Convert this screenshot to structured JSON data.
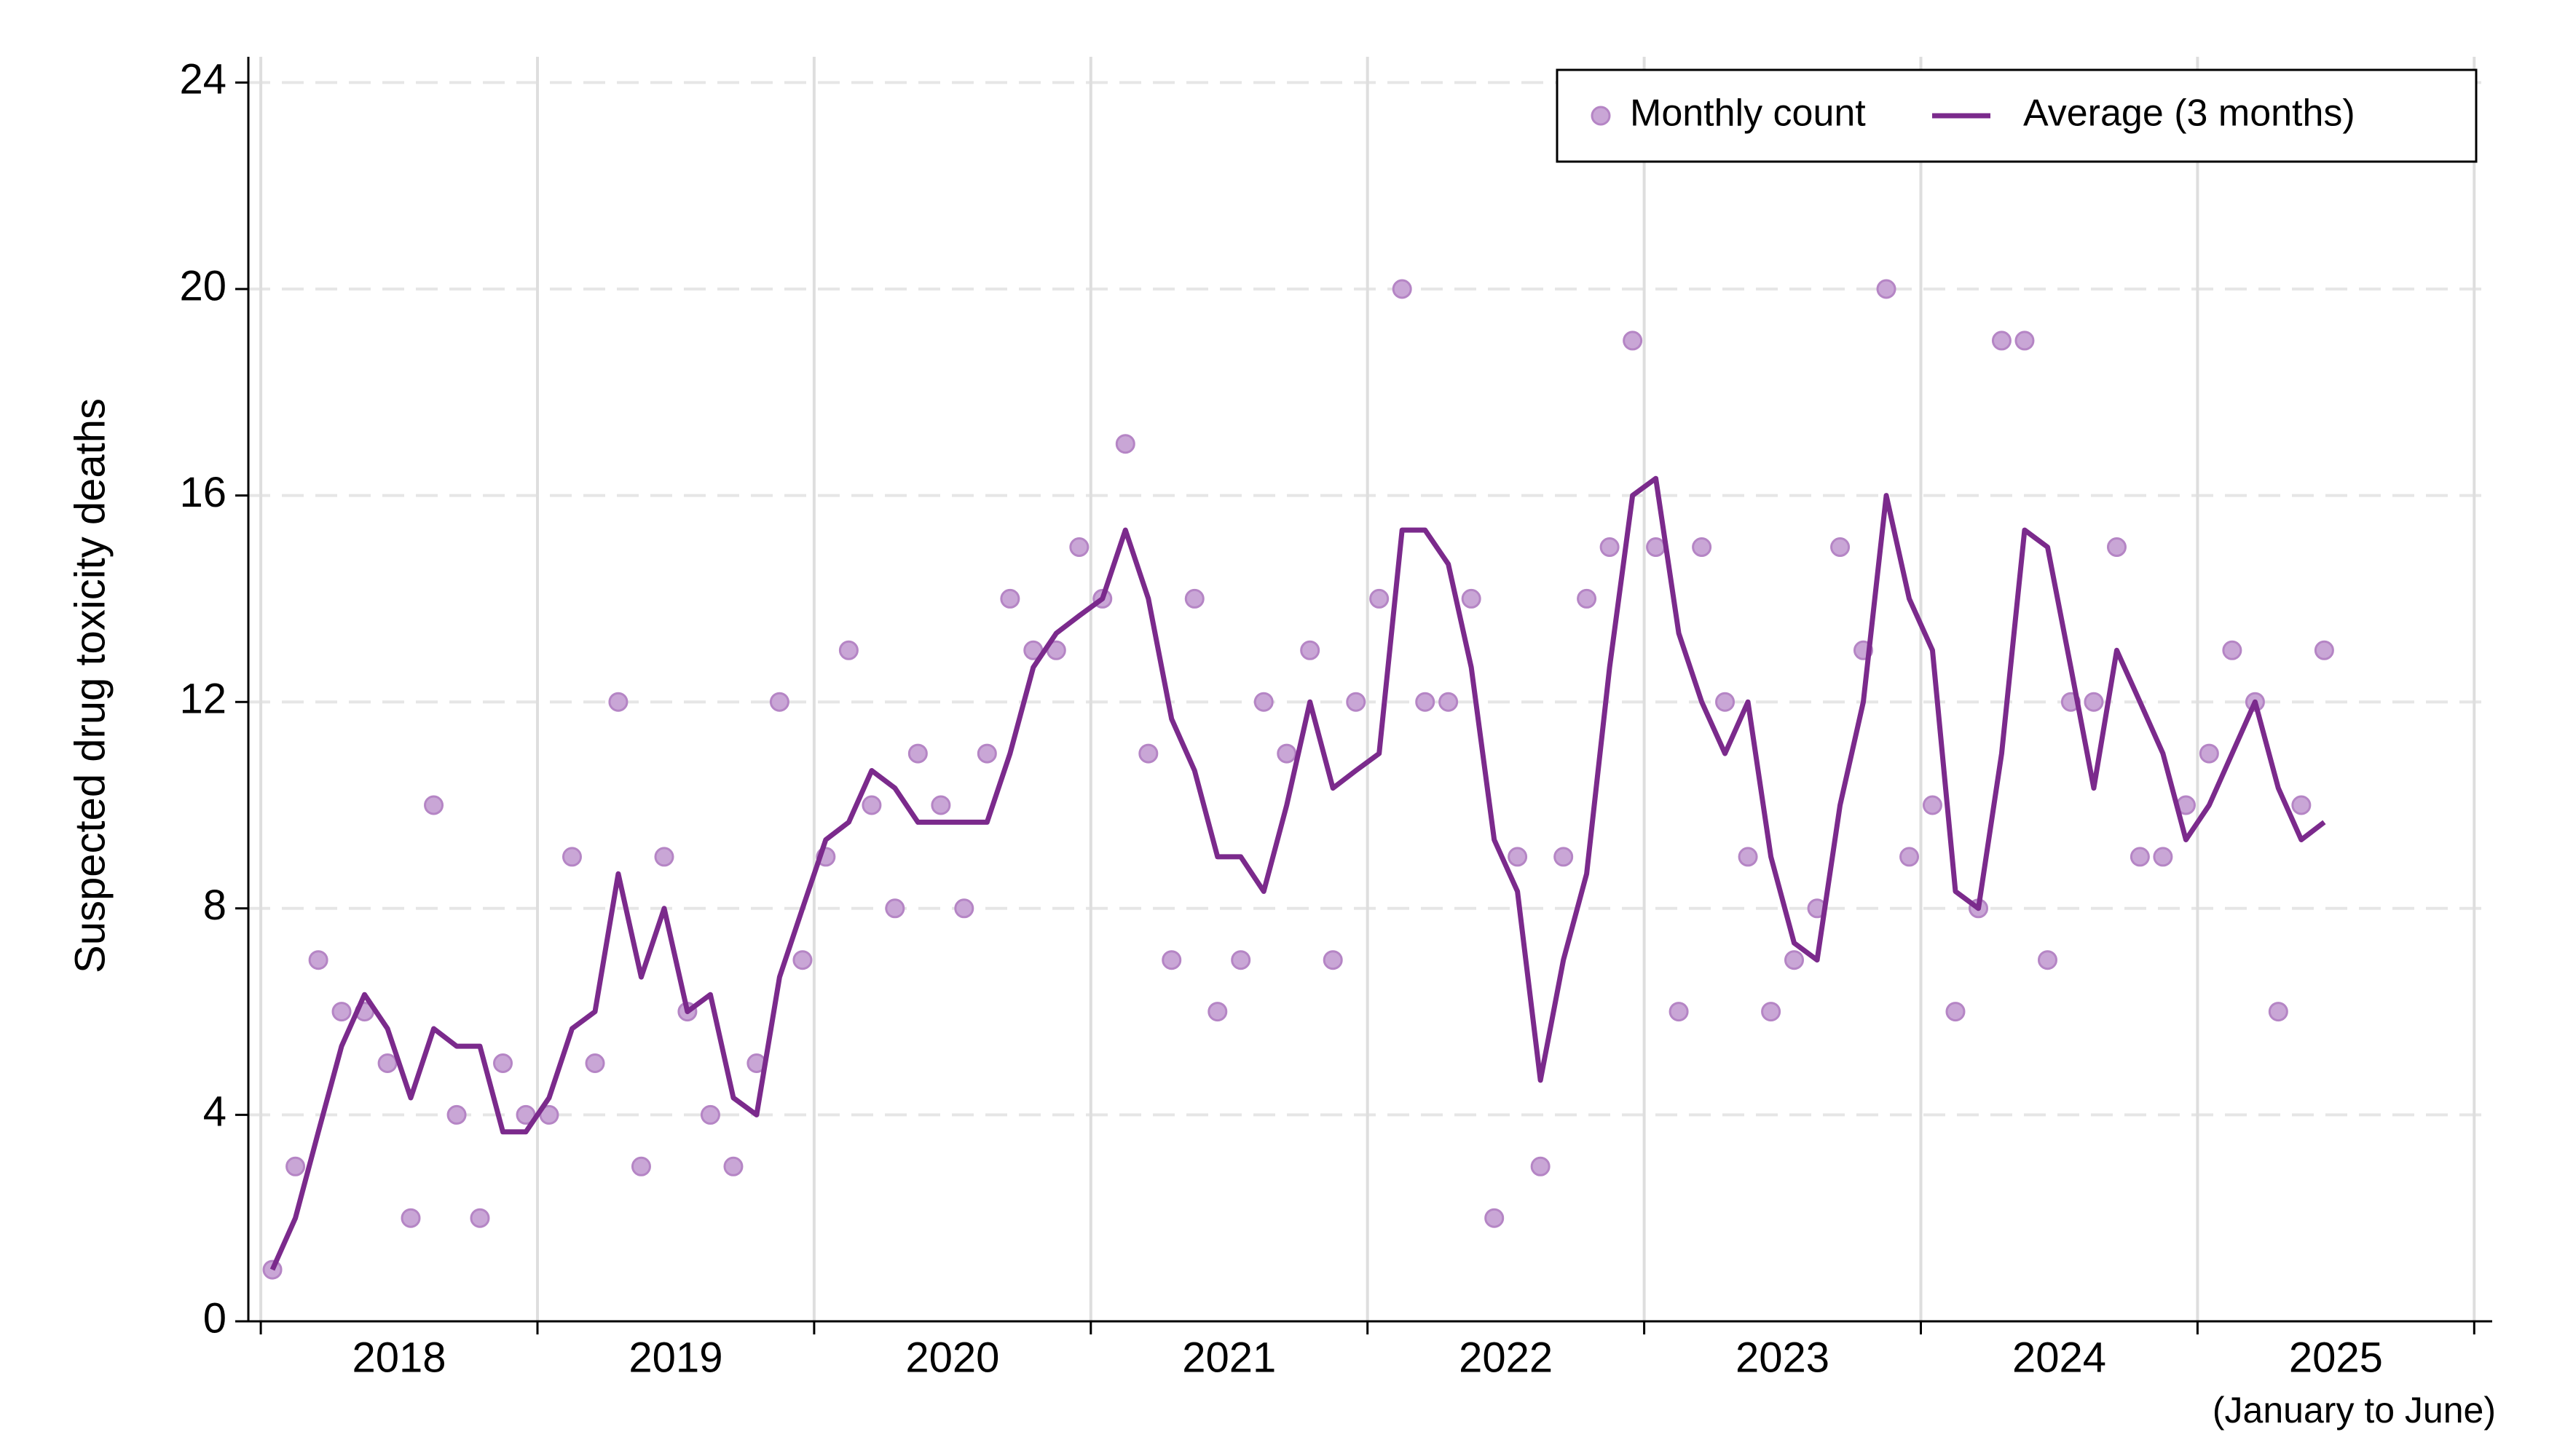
{
  "chart_data": {
    "type": "line",
    "ylabel": "Suspected drug toxicity deaths",
    "x": [
      2018.042,
      2018.125,
      2018.208,
      2018.292,
      2018.375,
      2018.458,
      2018.542,
      2018.625,
      2018.708,
      2018.792,
      2018.875,
      2018.958,
      2019.042,
      2019.125,
      2019.208,
      2019.292,
      2019.375,
      2019.458,
      2019.542,
      2019.625,
      2019.708,
      2019.792,
      2019.875,
      2019.958,
      2020.042,
      2020.125,
      2020.208,
      2020.292,
      2020.375,
      2020.458,
      2020.542,
      2020.625,
      2020.708,
      2020.792,
      2020.875,
      2020.958,
      2021.042,
      2021.125,
      2021.208,
      2021.292,
      2021.375,
      2021.458,
      2021.542,
      2021.625,
      2021.708,
      2021.792,
      2021.875,
      2021.958,
      2022.042,
      2022.125,
      2022.208,
      2022.292,
      2022.375,
      2022.458,
      2022.542,
      2022.625,
      2022.708,
      2022.792,
      2022.875,
      2022.958,
      2023.042,
      2023.125,
      2023.208,
      2023.292,
      2023.375,
      2023.458,
      2023.542,
      2023.625,
      2023.708,
      2023.792,
      2023.875,
      2023.958,
      2024.042,
      2024.125,
      2024.208,
      2024.292,
      2024.375,
      2024.458,
      2024.542,
      2024.625,
      2024.708,
      2024.792,
      2024.875,
      2024.958,
      2025.042,
      2025.125,
      2025.208,
      2025.292,
      2025.375,
      2025.458
    ],
    "series": [
      {
        "name": "Monthly count",
        "style": "points",
        "color": "#c9a6d6",
        "values": [
          1,
          3,
          7,
          6,
          6,
          5,
          2,
          10,
          4,
          2,
          5,
          4,
          4,
          9,
          5,
          12,
          3,
          9,
          6,
          4,
          3,
          5,
          12,
          7,
          9,
          13,
          10,
          8,
          11,
          10,
          8,
          11,
          14,
          13,
          13,
          15,
          14,
          17,
          11,
          7,
          14,
          6,
          7,
          12,
          11,
          13,
          7,
          12,
          14,
          20,
          12,
          12,
          14,
          2,
          9,
          3,
          9,
          14,
          15,
          19,
          15,
          6,
          15,
          12,
          9,
          6,
          7,
          8,
          15,
          13,
          20,
          9,
          10,
          6,
          8,
          19,
          19,
          7,
          12,
          12,
          15,
          9,
          9,
          10,
          11,
          13,
          12,
          6,
          10,
          13
        ]
      },
      {
        "name": "Average (3 months)",
        "style": "line",
        "color": "#7b2a8c",
        "values": [
          1,
          2,
          3.67,
          5.33,
          6.33,
          5.67,
          4.33,
          5.67,
          5.33,
          5.33,
          3.67,
          3.67,
          4.33,
          5.67,
          6,
          8.67,
          6.67,
          8,
          6,
          6.33,
          4.33,
          4,
          6.67,
          8,
          9.33,
          9.67,
          10.67,
          10.33,
          9.67,
          9.67,
          9.67,
          9.67,
          11,
          12.67,
          13.33,
          13.67,
          14,
          15.33,
          14,
          11.67,
          10.67,
          9,
          9,
          8.33,
          10,
          12,
          10.33,
          10.67,
          11,
          15.33,
          15.33,
          14.67,
          12.67,
          9.33,
          8.33,
          4.67,
          7,
          8.67,
          12.67,
          16,
          16.33,
          13.33,
          12,
          11,
          12,
          9,
          7.33,
          7,
          10,
          12,
          16,
          14,
          13,
          8.33,
          8,
          11,
          15.33,
          15,
          12.67,
          10.33,
          13,
          12,
          11,
          9.33,
          10,
          11,
          12,
          10.33,
          9.33,
          9.67
        ]
      }
    ],
    "xlim": [
      2017.955,
      2026.065
    ],
    "xticks": [
      2018,
      2019,
      2020,
      2021,
      2022,
      2023,
      2024,
      2025,
      2026
    ],
    "year_labels": [
      "2018",
      "2019",
      "2020",
      "2021",
      "2022",
      "2023",
      "2024",
      "2025"
    ],
    "note": "(January to June)",
    "ylim": [
      0,
      24.5
    ],
    "yticks": [
      0,
      4,
      8,
      12,
      16,
      20,
      24
    ],
    "grid": true,
    "legend": "top-right"
  }
}
